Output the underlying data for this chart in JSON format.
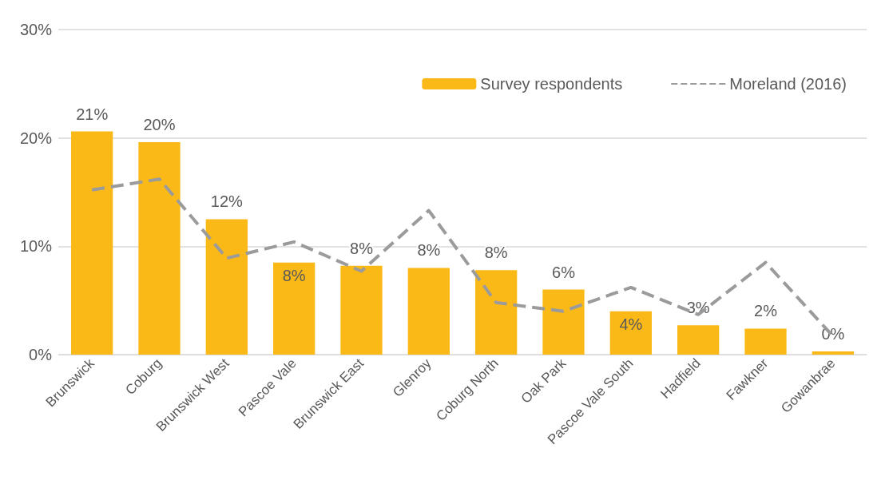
{
  "chart_data": {
    "type": "bar",
    "categories": [
      "Brunswick",
      "Coburg",
      "Brunswick West",
      "Pascoe Vale",
      "Brunswick East",
      "Glenroy",
      "Coburg North",
      "Oak Park",
      "Pascoe Vale South",
      "Hadfield",
      "Fawkner",
      "Gowanbrae"
    ],
    "series": [
      {
        "name": "Survey respondents",
        "type": "bar",
        "color": "#fbb917",
        "values": [
          20.6,
          19.6,
          12.5,
          8.5,
          8.2,
          8.0,
          7.8,
          6.0,
          4.0,
          2.7,
          2.4,
          0.3
        ],
        "value_labels": [
          "21%",
          "20%",
          "12%",
          "8%",
          "8%",
          "8%",
          "8%",
          "6%",
          "4%",
          "3%",
          "2%",
          "0%"
        ]
      },
      {
        "name": "Moreland (2016)",
        "type": "line",
        "color": "#9b9b9b",
        "line_style": "dashed",
        "marker": "none",
        "values": [
          15.2,
          16.2,
          8.9,
          10.4,
          7.7,
          13.3,
          4.8,
          4.0,
          6.2,
          3.7,
          8.5,
          1.7
        ]
      }
    ],
    "ylim": [
      0,
      30
    ],
    "yticks": [
      {
        "value": 0,
        "label": "0%"
      },
      {
        "value": 10,
        "label": "10%"
      },
      {
        "value": 20,
        "label": "20%"
      },
      {
        "value": 30,
        "label": "30%"
      }
    ],
    "grid": "y",
    "legend": "top right"
  }
}
